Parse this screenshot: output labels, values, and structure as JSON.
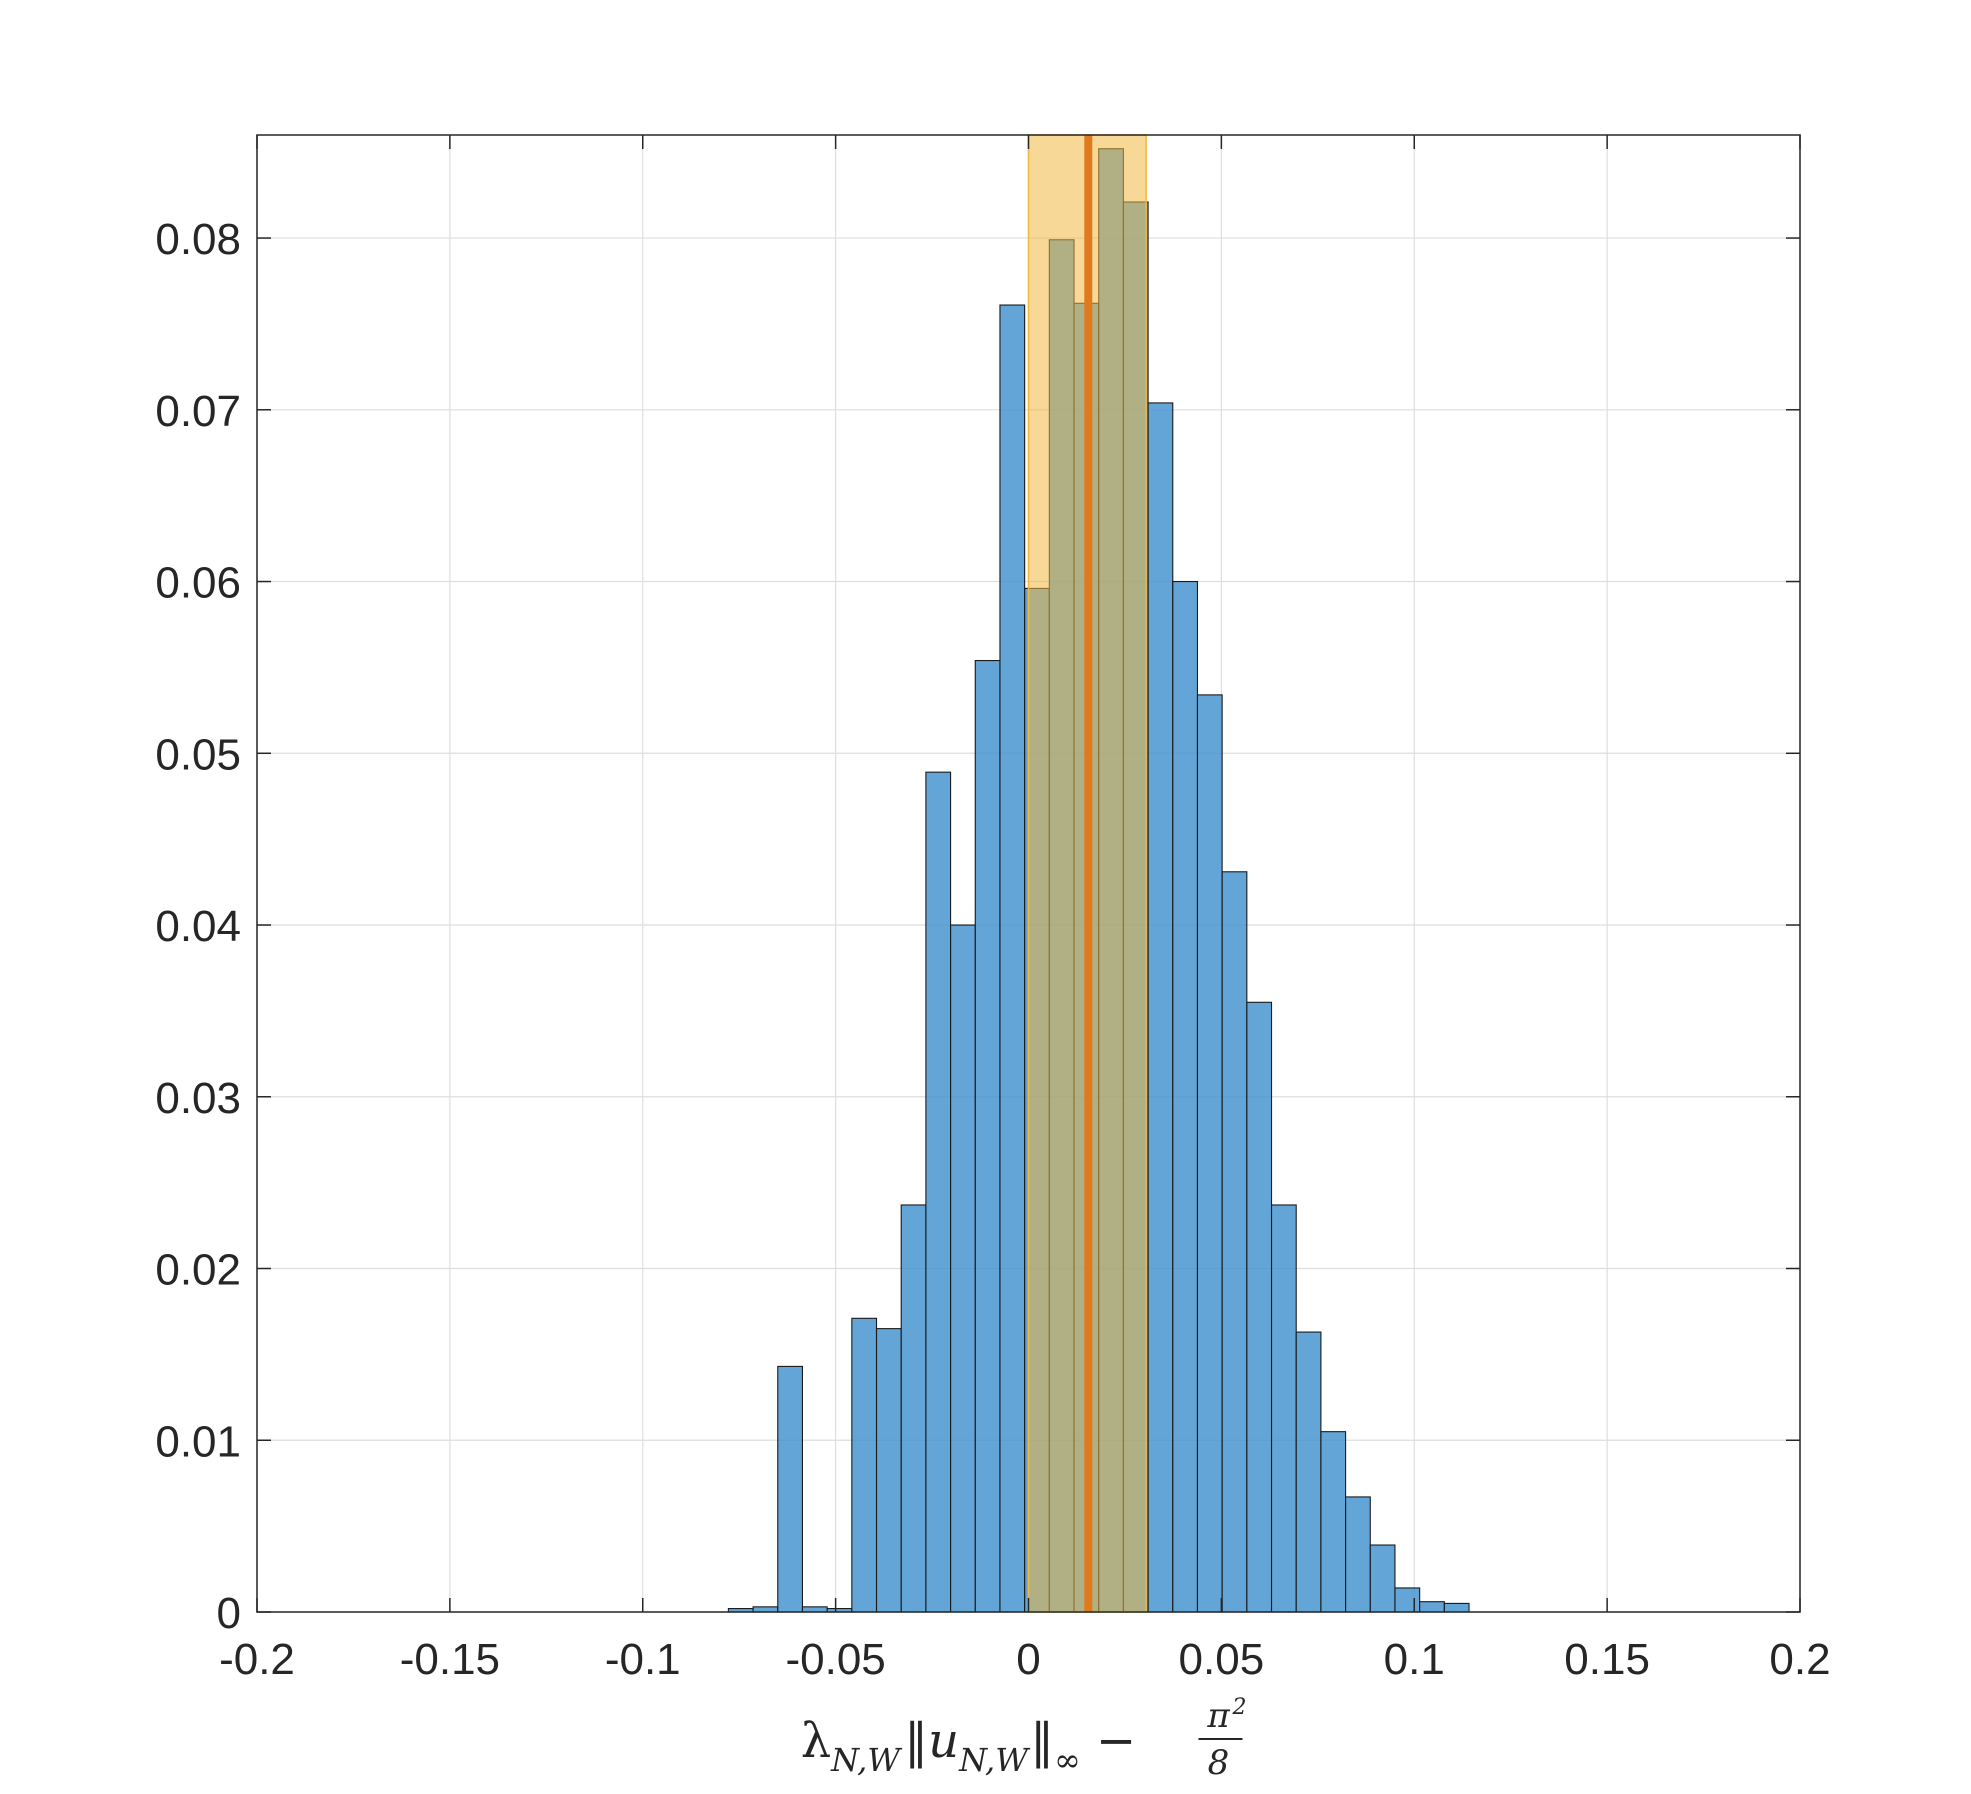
{
  "chart_data": {
    "type": "bar",
    "title": "",
    "xlabel": "λN,W‖uN,W‖∞ − π²/8",
    "ylabel": "",
    "xlim": [
      -0.2,
      0.2
    ],
    "ylim": [
      0,
      0.086
    ],
    "grid": true,
    "x_ticks": [
      "-0.2",
      "-0.15",
      "-0.1",
      "-0.05",
      "0",
      "0.05",
      "0.1",
      "0.15",
      "0.2"
    ],
    "y_ticks": [
      "0",
      "0.01",
      "0.02",
      "0.03",
      "0.04",
      "0.05",
      "0.06",
      "0.07",
      "0.08"
    ],
    "bin_width": 0.0064,
    "bin_edges": [
      -0.0778,
      -0.0714,
      -0.065,
      -0.0586,
      -0.0522,
      -0.0458,
      -0.0394,
      -0.033,
      -0.0266,
      -0.0202,
      -0.0138,
      -0.0074,
      -0.001,
      0.0054,
      0.0118,
      0.0182,
      0.0246,
      0.031,
      0.0374,
      0.0438,
      0.0502,
      0.0566,
      0.063,
      0.0694,
      0.0758,
      0.0822,
      0.0886,
      0.095,
      0.1014,
      0.1078,
      0.1142
    ],
    "values": [
      0.0002,
      0.0003,
      0.0143,
      0.0003,
      0.0002,
      0.0171,
      0.0165,
      0.0237,
      0.0489,
      0.04,
      0.0554,
      0.0761,
      0.0596,
      0.0799,
      0.0762,
      0.0852,
      0.0821,
      0.0704,
      0.06,
      0.0534,
      0.0431,
      0.0355,
      0.0237,
      0.0163,
      0.0105,
      0.0067,
      0.0039,
      0.0014,
      0.0006,
      0.0005
    ],
    "bar_color": "#3d8fce",
    "bar_edge_color": "#1a1a1a",
    "interval": {
      "lo": 0.0,
      "hi": 0.0305,
      "color": "#f0b840"
    },
    "center_line": {
      "x": 0.0155,
      "color": "#e07a1f"
    }
  }
}
